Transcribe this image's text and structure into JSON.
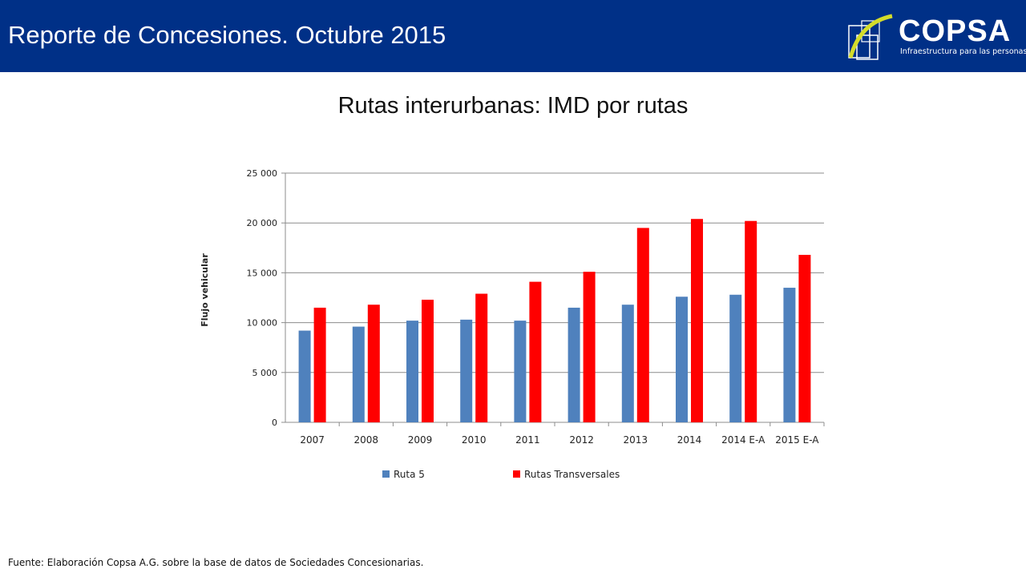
{
  "header": {
    "title": "Reporte de Concesiones. Octubre 2015",
    "background": "#003087",
    "logo": {
      "word": "COPSA",
      "tagline": "Infraestructura para las personas",
      "accent": "#d4dc2a"
    }
  },
  "footer": {
    "source": "Fuente: Elaboración Copsa A.G. sobre la base de datos de Sociedades Concesionarias."
  },
  "chart_data": {
    "type": "bar",
    "title": "Rutas interurbanas: IMD por rutas",
    "xlabel": "",
    "ylabel": "Flujo vehicular",
    "categories": [
      "2007",
      "2008",
      "2009",
      "2010",
      "2011",
      "2012",
      "2013",
      "2014",
      "2014 E-A",
      "2015 E-A"
    ],
    "series": [
      {
        "name": "Ruta 5",
        "color": "#4f81bd",
        "values": [
          9200,
          9600,
          10200,
          10300,
          10200,
          11500,
          11800,
          12600,
          12800,
          13500
        ]
      },
      {
        "name": "Rutas Transversales",
        "color": "#ff0000",
        "values": [
          11500,
          11800,
          12300,
          12900,
          14100,
          15100,
          19500,
          20400,
          20200,
          16800
        ]
      }
    ],
    "ylim": [
      0,
      25000
    ],
    "yticks": [
      {
        "value": 0,
        "label": "0"
      },
      {
        "value": 5000,
        "label": "5 000"
      },
      {
        "value": 10000,
        "label": "10 000"
      },
      {
        "value": 15000,
        "label": "15 000"
      },
      {
        "value": 20000,
        "label": "20 000"
      },
      {
        "value": 25000,
        "label": "25 000"
      }
    ],
    "grid": true,
    "legend": "bottom"
  }
}
